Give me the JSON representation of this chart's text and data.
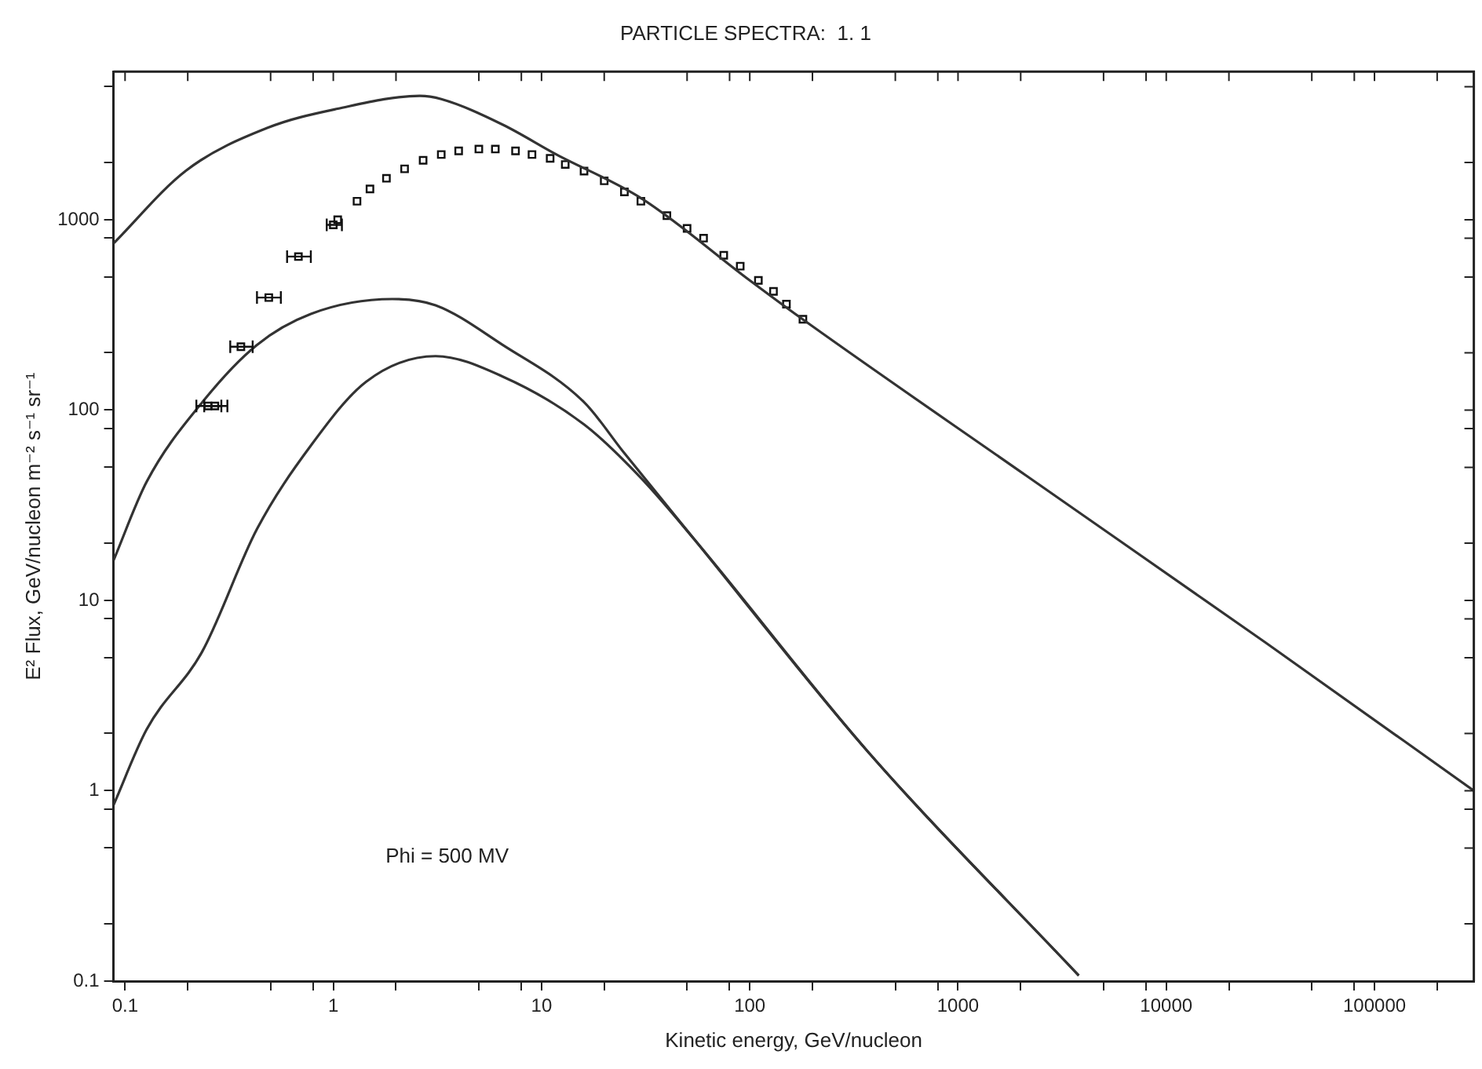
{
  "chart_data": {
    "type": "line",
    "title": "PARTICLE SPECTRA:  1. 1",
    "xlabel": "Kinetic energy, GeV/nucleon",
    "ylabel": "E² Flux, GeV/nucleon m⁻² s⁻¹ sr⁻¹",
    "annotations": [
      "Phi = 500 MV"
    ],
    "log": "xy",
    "grid": false,
    "legend": false,
    "xlim": [
      0.088,
      300000
    ],
    "ylim": [
      0.1,
      6000
    ],
    "xticks": [
      0.1,
      {
        "value": 0.2,
        "label": null
      },
      {
        "value": 0.5,
        "label": null
      },
      {
        "value": 0.8,
        "label": null
      },
      1,
      {
        "value": 2,
        "label": null
      },
      {
        "value": 5,
        "label": null
      },
      {
        "value": 8,
        "label": null
      },
      10,
      {
        "value": 20,
        "label": null
      },
      {
        "value": 50,
        "label": null
      },
      {
        "value": 80,
        "label": null
      },
      100,
      {
        "value": 200,
        "label": null
      },
      {
        "value": 500,
        "label": null
      },
      {
        "value": 800,
        "label": null
      },
      1000,
      {
        "value": 2000,
        "label": null
      },
      {
        "value": 5000,
        "label": null
      },
      {
        "value": 8000,
        "label": null
      },
      10000,
      {
        "value": 20000,
        "label": null
      },
      {
        "value": 50000,
        "label": null
      },
      {
        "value": 80000,
        "label": null
      },
      100000,
      {
        "value": 200000,
        "label": null
      }
    ],
    "yticks": [
      0.1,
      {
        "value": 0.2,
        "label": null
      },
      {
        "value": 0.5,
        "label": null
      },
      {
        "value": 0.8,
        "label": null
      },
      1,
      {
        "value": 2,
        "label": null
      },
      {
        "value": 5,
        "label": null
      },
      {
        "value": 8,
        "label": null
      },
      10,
      {
        "value": 20,
        "label": null
      },
      {
        "value": 50,
        "label": null
      },
      {
        "value": 80,
        "label": null
      },
      100,
      {
        "value": 200,
        "label": null
      },
      {
        "value": 500,
        "label": null
      },
      {
        "value": 800,
        "label": null
      },
      1000,
      {
        "value": 2000,
        "label": null
      },
      {
        "value": 5000,
        "label": null
      }
    ],
    "series": [
      {
        "color": "#333333",
        "marker": "none",
        "line_style": "solid",
        "x": [
          0.088,
          0.196,
          0.484,
          1.05,
          2.6,
          3.3,
          6.5,
          11.8,
          30,
          100,
          172,
          2140,
          30000,
          300000
        ],
        "values": [
          750,
          1810,
          3040,
          3830,
          4470,
          4300,
          3160,
          2200,
          1300,
          480,
          310,
          45,
          6.0,
          1.0
        ]
      },
      {
        "color": "#333333",
        "marker": "none",
        "line_style": "solid",
        "x": [
          0.088,
          0.127,
          0.235,
          0.43,
          0.78,
          1.92,
          3.1,
          6.5,
          16,
          24.8,
          54,
          370,
          3800
        ],
        "values": [
          16.2,
          42,
          110,
          220,
          320,
          383,
          355,
          220,
          110,
          60,
          21,
          1.6,
          0.107
        ]
      },
      {
        "color": "#333333",
        "marker": "none",
        "line_style": "solid",
        "x": [
          0.088,
          0.127,
          0.235,
          0.43,
          0.78,
          1.44,
          3.1,
          6.5,
          16,
          30,
          54,
          370,
          3800
        ],
        "values": [
          0.84,
          2.1,
          5.4,
          23.7,
          65,
          141,
          192,
          150,
          84,
          44,
          21,
          1.6,
          0.107
        ]
      },
      {
        "type": "scatter",
        "color": "#111111",
        "marker": "square",
        "x": [
          0.25,
          0.27,
          0.36,
          0.49,
          0.68,
          1.0,
          1.05,
          1.3,
          1.5,
          1.8,
          2.2,
          2.7,
          3.3,
          4,
          5,
          6,
          7.5,
          9,
          11,
          13,
          16,
          20,
          25,
          30,
          40,
          50,
          60,
          75,
          90,
          110,
          130,
          150,
          180
        ],
        "values": [
          105,
          105,
          215,
          390,
          640,
          940,
          1000,
          1250,
          1450,
          1650,
          1850,
          2050,
          2200,
          2300,
          2350,
          2350,
          2300,
          2200,
          2100,
          1950,
          1800,
          1600,
          1400,
          1250,
          1050,
          900,
          800,
          650,
          570,
          480,
          420,
          360,
          300
        ],
        "xerrors": [
          [
            0.22,
            0.29
          ],
          [
            0.24,
            0.31
          ],
          [
            0.32,
            0.41
          ],
          [
            0.43,
            0.56
          ],
          [
            0.6,
            0.78
          ],
          [
            0.93,
            1.1
          ],
          null,
          null,
          null,
          null,
          null,
          null,
          null,
          null,
          null,
          null,
          null,
          null,
          null,
          null,
          null,
          null,
          null,
          null,
          null,
          null,
          null,
          null,
          null,
          null,
          null,
          null,
          null
        ]
      }
    ]
  }
}
